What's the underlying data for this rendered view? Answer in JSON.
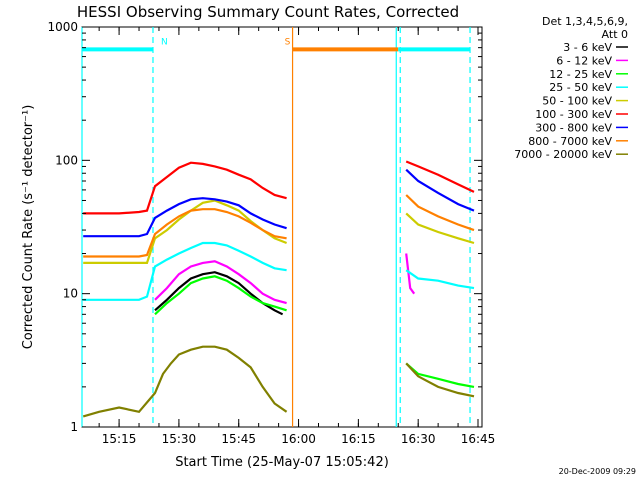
{
  "chart_data": {
    "type": "line",
    "title": "HESSI Observing Summary Count Rates, Corrected",
    "xlabel": "Start Time (25-May-07 15:05:42)",
    "ylabel": "Corrected Count Rate (s⁻¹ detector⁻¹)",
    "y_scale": "log",
    "ylim": [
      1,
      1000
    ],
    "xlim": [
      "15:05:42",
      "16:46:00"
    ],
    "x_ticks": [
      "15:15",
      "15:30",
      "15:45",
      "16:00",
      "16:15",
      "16:30",
      "16:45"
    ],
    "y_ticks": [
      "1",
      "10",
      "100",
      "1000"
    ],
    "legend_title": [
      "Det 1,3,4,5,6,9,",
      "Att 0"
    ],
    "legend_position": "right",
    "timestamp": "20-Dec-2009 09:29",
    "grid": false,
    "data_gaps": [
      [
        "15:58:30",
        "16:24:30"
      ]
    ],
    "flag_bars": [
      {
        "label": "N",
        "start": "15:05:42",
        "end": "15:23:30",
        "level": 680,
        "color": "#00ffff"
      },
      {
        "label": "S",
        "start": "15:58:30",
        "end": "16:25:00",
        "level": 680,
        "color": "#ff8000"
      },
      {
        "label": "",
        "start": "16:25:00",
        "end": "16:43:00",
        "level": 680,
        "color": "#00ffff"
      }
    ],
    "markers": [
      {
        "time": "15:05:42",
        "color": "#00ffff",
        "style": "solid"
      },
      {
        "time": "15:23:30",
        "color": "#00ffff",
        "style": "dashed"
      },
      {
        "time": "15:58:30",
        "color": "#ff8000",
        "style": "solid"
      },
      {
        "time": "16:24:30",
        "color": "#00ffff",
        "style": "solid"
      },
      {
        "time": "16:25:30",
        "color": "#00ffff",
        "style": "dashed"
      },
      {
        "time": "16:43:00",
        "color": "#00ffff",
        "style": "dashed"
      }
    ],
    "series": [
      {
        "name": "3 - 6 keV",
        "color": "#000000",
        "x": [
          "15:24",
          "15:27",
          "15:30",
          "15:33",
          "15:36",
          "15:39",
          "15:42",
          "15:45",
          "15:48",
          "15:51",
          "15:54",
          "15:56"
        ],
        "y": [
          7.5,
          9,
          11,
          13,
          14,
          14.5,
          13.5,
          12,
          10,
          8.5,
          7.5,
          7
        ]
      },
      {
        "name": "6 - 12 keV",
        "color": "#ff00ff",
        "x": [
          "15:05",
          "15:15",
          "15:20",
          "15:24",
          "15:27",
          "15:30",
          "15:33",
          "15:36",
          "15:39",
          "15:42",
          "15:45",
          "15:48",
          "15:51",
          "15:54",
          "15:57",
          "16:27",
          "16:28",
          "16:29"
        ],
        "y": [
          null,
          null,
          null,
          9,
          11,
          14,
          16,
          17,
          17.5,
          16,
          14,
          12,
          10,
          9,
          8.5,
          20,
          11,
          10
        ]
      },
      {
        "name": "12 - 25 keV",
        "color": "#00ff00",
        "x": [
          "15:24",
          "15:27",
          "15:30",
          "15:33",
          "15:36",
          "15:39",
          "15:42",
          "15:45",
          "15:48",
          "15:51",
          "15:54",
          "15:57",
          "16:27",
          "16:30",
          "16:35",
          "16:40",
          "16:44"
        ],
        "y": [
          7,
          8.5,
          10,
          12,
          13,
          13.5,
          12.5,
          11,
          9.5,
          8.5,
          8,
          7.5,
          3,
          2.5,
          2.3,
          2.1,
          2
        ]
      },
      {
        "name": "25 - 50 keV",
        "color": "#00ffff",
        "x": [
          "15:06",
          "15:15",
          "15:20",
          "15:22",
          "15:24",
          "15:27",
          "15:30",
          "15:33",
          "15:36",
          "15:39",
          "15:42",
          "15:45",
          "15:48",
          "15:51",
          "15:54",
          "15:57",
          "16:27",
          "16:30",
          "16:35",
          "16:40",
          "16:44"
        ],
        "y": [
          9,
          9,
          9,
          9.5,
          16,
          18,
          20,
          22,
          24,
          24,
          23,
          21,
          19,
          17,
          15.5,
          15,
          15,
          13,
          12.5,
          11.5,
          11
        ]
      },
      {
        "name": "50 - 100 keV",
        "color": "#cccc00",
        "x": [
          "15:06",
          "15:15",
          "15:20",
          "15:22",
          "15:24",
          "15:27",
          "15:30",
          "15:33",
          "15:36",
          "15:39",
          "15:42",
          "15:45",
          "15:48",
          "15:51",
          "15:54",
          "15:57",
          "16:27",
          "16:30",
          "16:35",
          "16:40",
          "16:44"
        ],
        "y": [
          17,
          17,
          17,
          17,
          26,
          30,
          36,
          42,
          48,
          50,
          46,
          42,
          35,
          30,
          26,
          24,
          40,
          33,
          29,
          26,
          24
        ]
      },
      {
        "name": "100 - 300 keV",
        "color": "#ff0000",
        "x": [
          "15:06",
          "15:15",
          "15:20",
          "15:22",
          "15:24",
          "15:27",
          "15:30",
          "15:33",
          "15:36",
          "15:39",
          "15:42",
          "15:45",
          "15:48",
          "15:51",
          "15:54",
          "15:57",
          "16:27",
          "16:30",
          "16:35",
          "16:40",
          "16:44"
        ],
        "y": [
          40,
          40,
          41,
          42,
          64,
          75,
          88,
          96,
          94,
          90,
          85,
          78,
          72,
          62,
          55,
          52,
          98,
          90,
          78,
          66,
          58
        ]
      },
      {
        "name": "300 - 800 keV",
        "color": "#0000ff",
        "x": [
          "15:06",
          "15:15",
          "15:20",
          "15:22",
          "15:24",
          "15:27",
          "15:30",
          "15:33",
          "15:36",
          "15:39",
          "15:42",
          "15:45",
          "15:48",
          "15:51",
          "15:54",
          "15:57",
          "16:27",
          "16:30",
          "16:35",
          "16:40",
          "16:44"
        ],
        "y": [
          27,
          27,
          27,
          28,
          37,
          42,
          47,
          51,
          52,
          51,
          49,
          46,
          40,
          36,
          33,
          31,
          85,
          70,
          57,
          47,
          42
        ]
      },
      {
        "name": "800 - 7000 keV",
        "color": "#ff8000",
        "x": [
          "15:06",
          "15:15",
          "15:20",
          "15:22",
          "15:24",
          "15:27",
          "15:30",
          "15:33",
          "15:36",
          "15:39",
          "15:42",
          "15:45",
          "15:48",
          "15:51",
          "15:54",
          "15:57",
          "16:27",
          "16:30",
          "16:35",
          "16:40",
          "16:44"
        ],
        "y": [
          19,
          19,
          19,
          19.5,
          28,
          33,
          38,
          42,
          43,
          43,
          41,
          38,
          34,
          30,
          27,
          26,
          55,
          45,
          38,
          33,
          30
        ]
      },
      {
        "name": "7000 - 20000 keV",
        "color": "#808000",
        "x": [
          "15:06",
          "15:10",
          "15:15",
          "15:20",
          "15:24",
          "15:26",
          "15:28",
          "15:30",
          "15:33",
          "15:36",
          "15:39",
          "15:42",
          "15:45",
          "15:48",
          "15:51",
          "15:54",
          "15:57",
          "16:27",
          "16:30",
          "16:35",
          "16:40",
          "16:44"
        ],
        "y": [
          1.2,
          1.3,
          1.4,
          1.3,
          1.8,
          2.5,
          3.0,
          3.5,
          3.8,
          4.0,
          4.0,
          3.8,
          3.3,
          2.8,
          2.0,
          1.5,
          1.3,
          3.0,
          2.4,
          2.0,
          1.8,
          1.7
        ]
      }
    ]
  }
}
